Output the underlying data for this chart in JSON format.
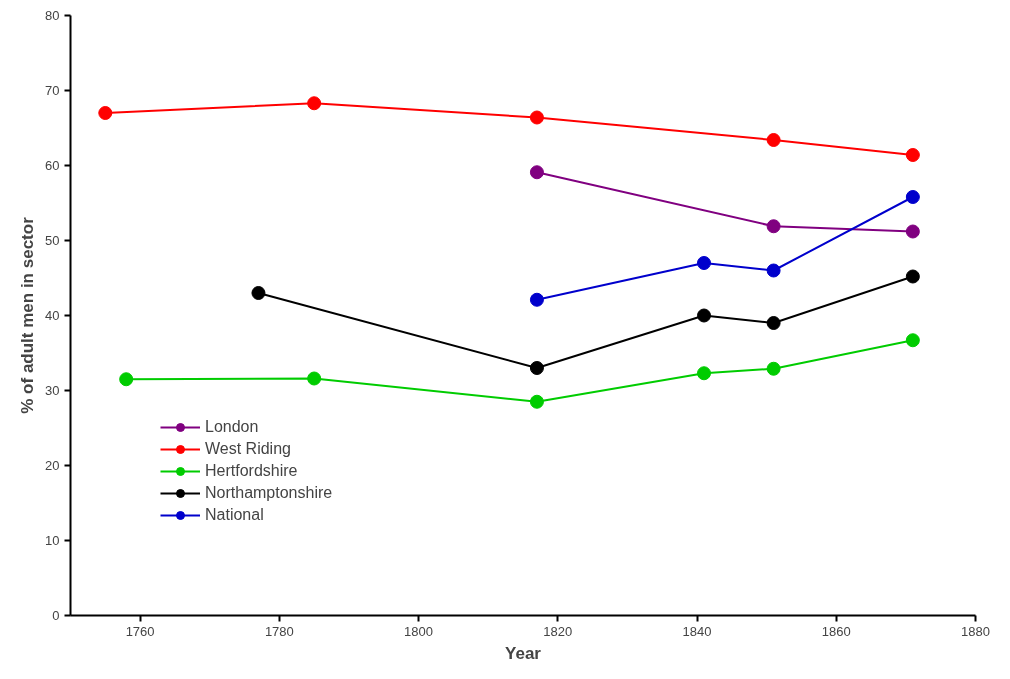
{
  "chart_data": {
    "type": "line",
    "xlabel": "Year",
    "ylabel": "% of adult men in sector",
    "xlim": [
      1750,
      1880
    ],
    "xticks": [
      1760,
      1780,
      1800,
      1820,
      1840,
      1860,
      1880
    ],
    "ylim": [
      0,
      80
    ],
    "yticks": [
      0,
      10,
      20,
      30,
      40,
      50,
      60,
      70,
      80
    ],
    "grid": false,
    "legend": "bottom left",
    "marker": "circle",
    "line_style": "solid",
    "series": [
      {
        "name": "London",
        "color": "#800080",
        "x": [
          1817,
          1851,
          1871
        ],
        "values": [
          59.1,
          51.9,
          51.2
        ]
      },
      {
        "name": "West Riding",
        "color": "#ff0000",
        "x": [
          1755,
          1785,
          1817,
          1851,
          1871
        ],
        "values": [
          67.0,
          68.3,
          66.4,
          63.4,
          61.4
        ]
      },
      {
        "name": "Hertfordshire",
        "color": "#00cc00",
        "x": [
          1758,
          1785,
          1817,
          1841,
          1851,
          1871
        ],
        "values": [
          31.5,
          31.6,
          28.5,
          32.3,
          32.9,
          36.7
        ]
      },
      {
        "name": "Northamptonshire",
        "color": "#000000",
        "x": [
          1777,
          1817,
          1841,
          1851,
          1871
        ],
        "values": [
          43.0,
          33.0,
          40.0,
          39.0,
          45.2
        ]
      },
      {
        "name": "National",
        "color": "#0000cc",
        "x": [
          1817,
          1841,
          1851,
          1871
        ],
        "values": [
          42.1,
          47.0,
          46.0,
          55.8
        ]
      }
    ]
  }
}
